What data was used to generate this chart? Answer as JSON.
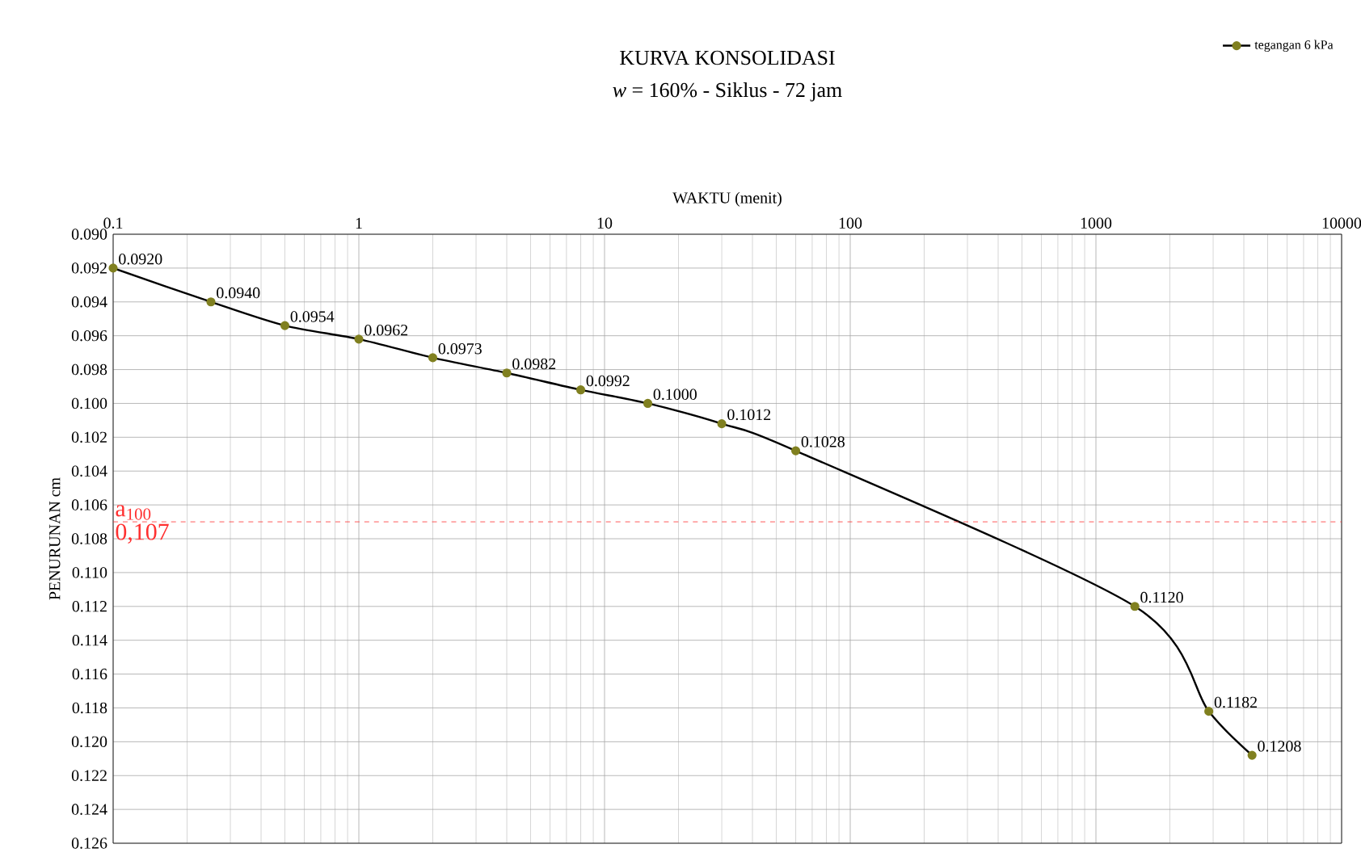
{
  "chart_data": {
    "type": "line",
    "title": "KURVA KONSOLIDASI",
    "subtitle": "*w* = 160% - Siklus - 72 jam",
    "xlabel": "WAKTU (menit)",
    "ylabel": "PENURUNAN cm",
    "series": [
      {
        "name": "tegangan 6 kPa",
        "color": "#808020",
        "x": [
          0.1,
          0.25,
          0.5,
          1,
          2,
          4,
          8,
          15,
          30,
          60,
          1440,
          2880,
          4320
        ],
        "values": [
          0.092,
          0.094,
          0.0954,
          0.0962,
          0.0973,
          0.0982,
          0.0992,
          0.1,
          0.1012,
          0.1028,
          0.112,
          0.1182,
          0.1208
        ],
        "value_labels": [
          "0.0920",
          "0.0940",
          "0.0954",
          "0.0962",
          "0.0973",
          "0.0982",
          "0.0992",
          "0.1000",
          "0.1012",
          "0.1028",
          "0.1120",
          "0.1182",
          "0.1208"
        ]
      }
    ],
    "log": "x",
    "xlim": [
      0.1,
      10000
    ],
    "xticks": [
      0.1,
      1,
      10,
      100,
      1000,
      10000
    ],
    "ylim": [
      0.126,
      0.09
    ],
    "yticks": [
      {
        "value": 0.09,
        "label": "0.090"
      },
      {
        "value": 0.092,
        "label": "0.092"
      },
      {
        "value": 0.094,
        "label": "0.094"
      },
      {
        "value": 0.096,
        "label": "0.096"
      },
      {
        "value": 0.098,
        "label": "0.098"
      },
      {
        "value": 0.1,
        "label": "0.100"
      },
      {
        "value": 0.102,
        "label": "0.102"
      },
      {
        "value": 0.104,
        "label": "0.104"
      },
      {
        "value": 0.106,
        "label": "0.106"
      },
      {
        "value": 0.108,
        "label": "0.108"
      },
      {
        "value": 0.11,
        "label": "0.110"
      },
      {
        "value": 0.112,
        "label": "0.112"
      },
      {
        "value": 0.114,
        "label": "0.114"
      },
      {
        "value": 0.116,
        "label": "0.116"
      },
      {
        "value": 0.118,
        "label": "0.118"
      },
      {
        "value": 0.12,
        "label": "0.120"
      },
      {
        "value": 0.122,
        "label": "0.122"
      },
      {
        "value": 0.124,
        "label": "0.124"
      },
      {
        "value": 0.126,
        "label": "0.126"
      }
    ],
    "ref_lines": [
      {
        "axis": "y",
        "value": 0.107,
        "label": "a$_{100}$",
        "color": "#ff3030",
        "line_style": "dashed"
      }
    ],
    "annotations": [
      {
        "text": "0,107",
        "x": 0.1,
        "y": 0.107
      }
    ],
    "grid": true,
    "legend": "top right",
    "marker": "circle"
  }
}
